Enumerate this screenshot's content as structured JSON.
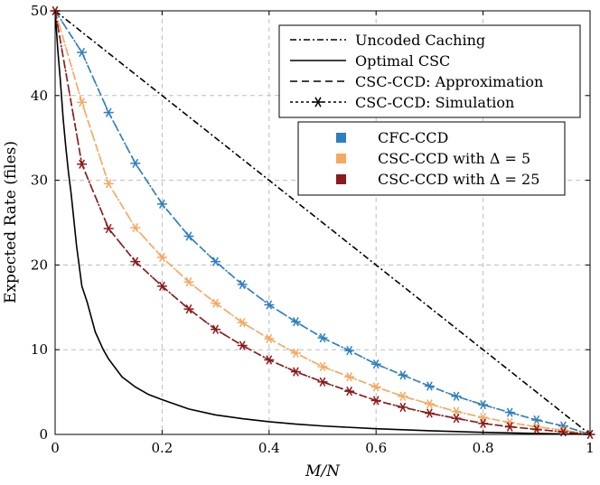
{
  "chart_data": {
    "type": "line",
    "title": "",
    "xlabel": "M/N",
    "ylabel": "Expected Rate (files)",
    "xlim": [
      0,
      1
    ],
    "ylim": [
      0,
      50
    ],
    "grid": true,
    "x_ticks": [
      "0",
      "0.2",
      "0.4",
      "0.6",
      "0.8",
      "1"
    ],
    "y_ticks": [
      "0",
      "10",
      "20",
      "30",
      "40",
      "50"
    ],
    "x_tick_values": [
      0,
      0.2,
      0.4,
      0.6,
      0.8,
      1
    ],
    "y_tick_values": [
      0,
      10,
      20,
      30,
      40,
      50
    ],
    "x": [
      0,
      0.05,
      0.1,
      0.15,
      0.2,
      0.25,
      0.3,
      0.35,
      0.4,
      0.45,
      0.5,
      0.55,
      0.6,
      0.65,
      0.7,
      0.75,
      0.8,
      0.85,
      0.9,
      0.95,
      1
    ],
    "style_legend": {
      "placement": "top-right",
      "entries": [
        {
          "label": "Uncoded Caching",
          "style": "dashdot"
        },
        {
          "label": "Optimal CSC",
          "style": "solid"
        },
        {
          "label": "CSC-CCD: Approximation",
          "style": "dashed"
        },
        {
          "label": "CSC-CCD: Simulation",
          "style": "dotted-star"
        }
      ]
    },
    "color_legend": {
      "placement": "upper-right",
      "entries": [
        {
          "label": "CFC-CCD",
          "color": "#2e7fbf"
        },
        {
          "label": "CSC-CCD with Δ = 5",
          "color": "#f6a861"
        },
        {
          "label": "CSC-CCD with Δ = 25",
          "color": "#8b1a1a"
        }
      ]
    },
    "series": [
      {
        "name": "Uncoded Caching",
        "color": "#000000",
        "style": "dashdot",
        "x": [
          0,
          1
        ],
        "values": [
          50,
          0
        ]
      },
      {
        "name": "Optimal CSC",
        "color": "#000000",
        "style": "solid",
        "x": [
          0,
          0.005,
          0.01,
          0.015,
          0.02,
          0.025,
          0.03,
          0.04,
          0.05,
          0.06,
          0.075,
          0.09,
          0.1,
          0.125,
          0.15,
          0.175,
          0.2,
          0.25,
          0.3,
          0.35,
          0.4,
          0.45,
          0.5,
          0.6,
          0.7,
          0.8,
          0.9,
          1
        ],
        "values": [
          50,
          45.4,
          41.6,
          37.3,
          33.9,
          30.9,
          28.4,
          22.3,
          17.5,
          15.6,
          12.1,
          10.0,
          8.9,
          6.8,
          5.6,
          4.7,
          4.1,
          3.0,
          2.3,
          1.86,
          1.5,
          1.22,
          1.0,
          0.67,
          0.43,
          0.25,
          0.11,
          0
        ]
      },
      {
        "name": "CFC-CCD (approximation)",
        "color": "#2e7fbf",
        "style": "dashed",
        "values": [
          50,
          45.1,
          38.0,
          32.0,
          27.2,
          23.4,
          20.4,
          17.7,
          15.3,
          13.3,
          11.4,
          9.9,
          8.3,
          7.0,
          5.7,
          4.5,
          3.5,
          2.6,
          1.7,
          1.0,
          0
        ]
      },
      {
        "name": "CFC-CCD (simulation)",
        "color": "#2e7fbf",
        "style": "dotted-star",
        "values": [
          50,
          45.1,
          38.0,
          32.0,
          27.2,
          23.4,
          20.4,
          17.7,
          15.3,
          13.3,
          11.4,
          9.9,
          8.3,
          7.0,
          5.7,
          4.5,
          3.5,
          2.6,
          1.7,
          1.0,
          0
        ]
      },
      {
        "name": "CSC-CCD with Δ = 5 (approximation)",
        "color": "#f6a861",
        "style": "dashed",
        "values": [
          50,
          39.2,
          29.6,
          24.4,
          20.9,
          18.0,
          15.5,
          13.2,
          11.3,
          9.6,
          8.0,
          6.8,
          5.6,
          4.5,
          3.6,
          2.7,
          2.0,
          1.4,
          0.9,
          0.5,
          0
        ]
      },
      {
        "name": "CSC-CCD with Δ = 5 (simulation)",
        "color": "#f6a861",
        "style": "dotted-star",
        "values": [
          50,
          39.2,
          29.6,
          24.4,
          20.9,
          18.0,
          15.5,
          13.2,
          11.3,
          9.6,
          8.0,
          6.8,
          5.6,
          4.5,
          3.6,
          2.7,
          2.0,
          1.4,
          0.9,
          0.5,
          0
        ]
      },
      {
        "name": "CSC-CCD with Δ = 25 (approximation)",
        "color": "#8b1a1a",
        "style": "dashed",
        "values": [
          50,
          31.9,
          24.3,
          20.4,
          17.5,
          14.8,
          12.4,
          10.5,
          8.8,
          7.4,
          6.2,
          5.1,
          4.0,
          3.2,
          2.5,
          1.9,
          1.3,
          0.9,
          0.6,
          0.3,
          0
        ]
      },
      {
        "name": "CSC-CCD with Δ = 25 (simulation)",
        "color": "#8b1a1a",
        "style": "dotted-star",
        "values": [
          50,
          31.9,
          24.3,
          20.4,
          17.5,
          14.8,
          12.4,
          10.5,
          8.8,
          7.4,
          6.2,
          5.1,
          4.0,
          3.2,
          2.5,
          1.9,
          1.3,
          0.9,
          0.6,
          0.3,
          0
        ]
      }
    ]
  }
}
